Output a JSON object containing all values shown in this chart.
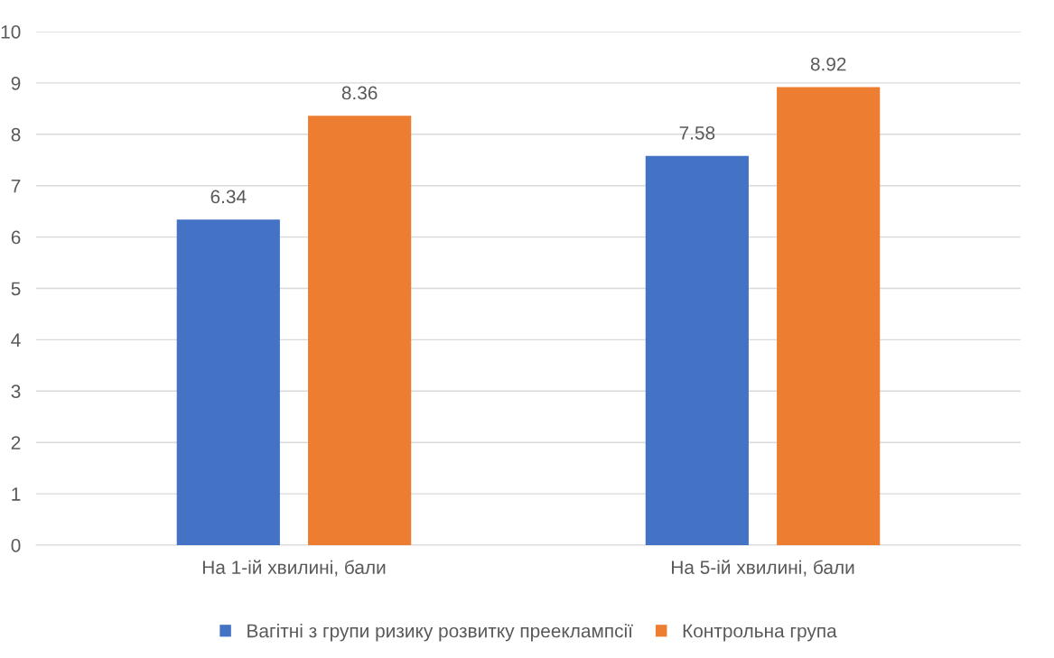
{
  "chart_data": {
    "type": "bar",
    "categories": [
      "На 1-ій хвилині, бали",
      "На 5-ій хвилині, бали"
    ],
    "series": [
      {
        "name": "Вагітні з групи ризику розвитку прееклампсії",
        "color": "#4472c4",
        "values": [
          6.34,
          7.58
        ]
      },
      {
        "name": "Контрольна група",
        "color": "#ed7d31",
        "values": [
          8.36,
          8.92
        ]
      }
    ],
    "ylim": [
      0,
      10
    ],
    "yticks": [
      0,
      1,
      2,
      3,
      4,
      5,
      6,
      7,
      8,
      9,
      10
    ],
    "grid": "y",
    "legend": "bottom",
    "data_labels": true
  }
}
